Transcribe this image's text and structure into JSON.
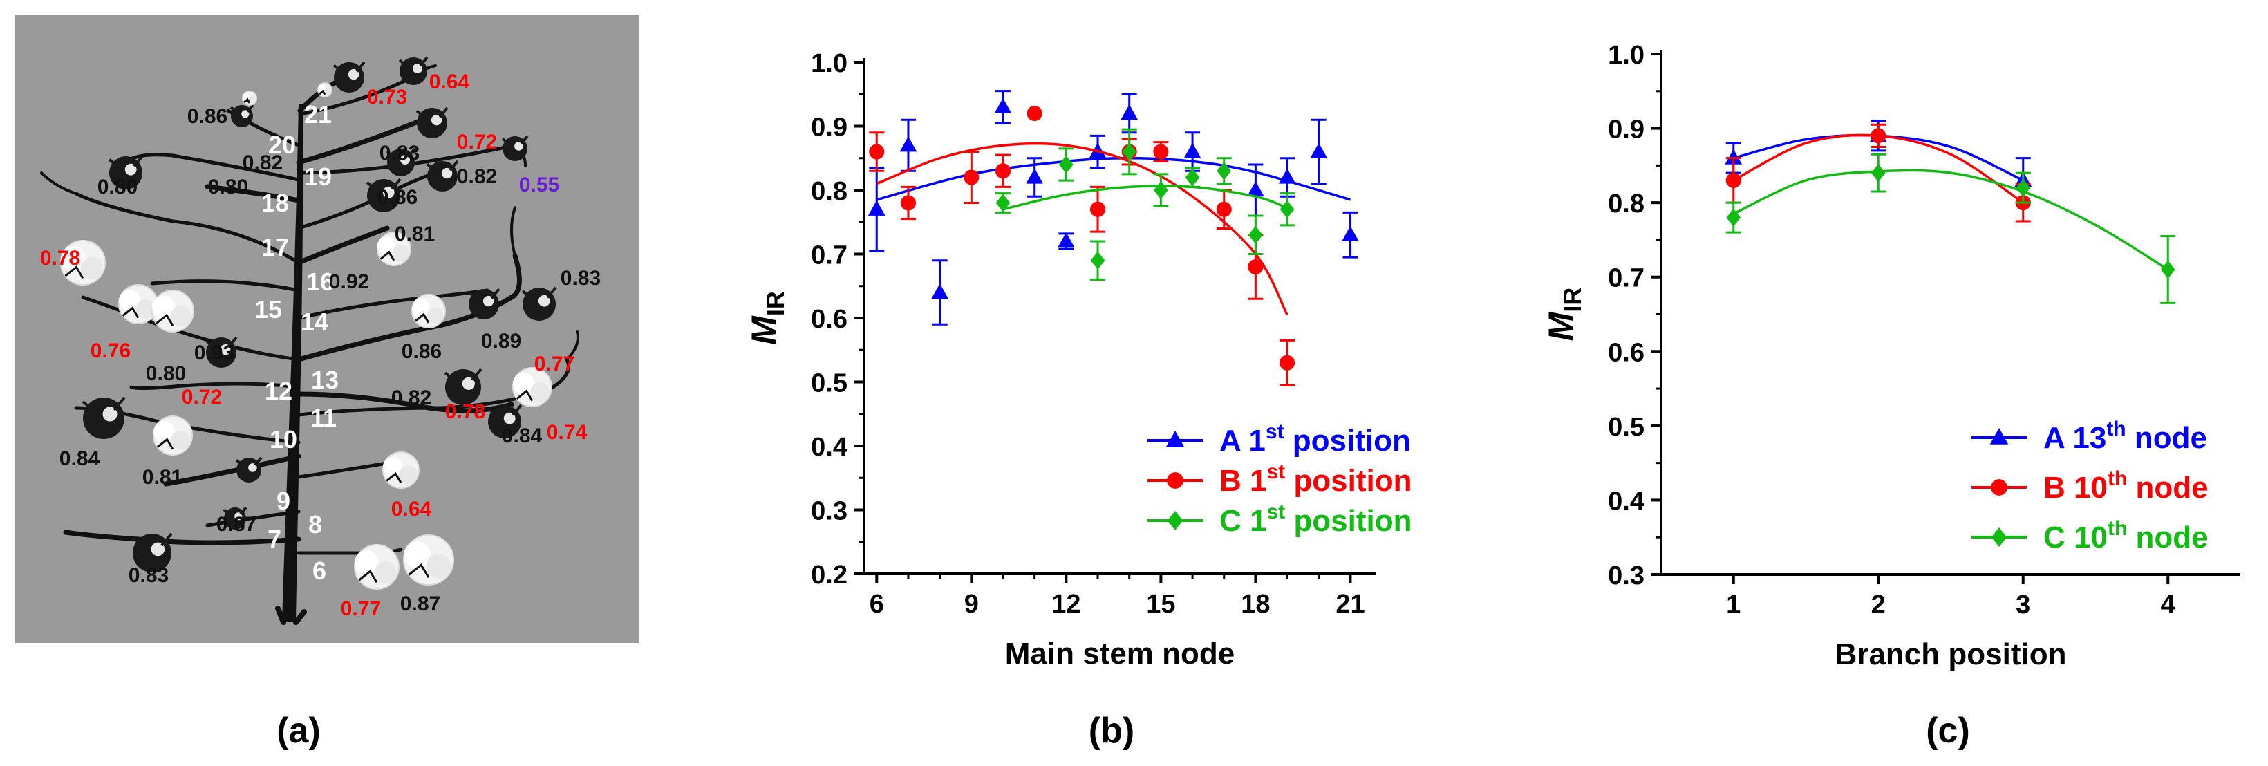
{
  "figure": {
    "panel_labels": [
      "(a)",
      "(b)",
      "(c)"
    ]
  },
  "panel_a": {
    "background": "#9a9a9a",
    "node_numbers": [
      "21",
      "20",
      "19",
      "18",
      "17",
      "16",
      "15",
      "14",
      "13",
      "12",
      "11",
      "10",
      "9",
      "8",
      "7",
      "6"
    ],
    "black_values": [
      "0.86",
      "0.82",
      "0.83",
      "0.80",
      "0.86",
      "0.82",
      "0.80",
      "0.81",
      "0.92",
      "0.86",
      "0.89",
      "0.83",
      "0.80",
      "0.93",
      "0.82",
      "0.84",
      "0.84",
      "0.81",
      "0.87",
      "0.83",
      "0.87"
    ],
    "red_values": [
      "0.73",
      "0.64",
      "0.72",
      "0.78",
      "0.76",
      "0.72",
      "0.77",
      "0.78",
      "0.74",
      "0.64",
      "0.77"
    ],
    "purple_values": [
      "0.55"
    ],
    "colors": {
      "black_value": "#111111",
      "red_value": "#ff0000",
      "purple_value": "#6a1fd1",
      "node_number": "#ffffff"
    }
  },
  "chart_data": [
    {
      "type": "scatter",
      "panel": "b",
      "xlabel": "Main stem node",
      "ylabel": "M",
      "ylabel_sub": "IR",
      "xlim": [
        5.6,
        21.8
      ],
      "ylim": [
        0.2,
        1.0
      ],
      "xticks": [
        6,
        9,
        12,
        15,
        18,
        21
      ],
      "yticks": [
        0.2,
        0.3,
        0.4,
        0.5,
        0.6,
        0.7,
        0.8,
        0.9,
        1.0
      ],
      "legend_position": "bottom-right",
      "series": [
        {
          "name": "A 1st position",
          "label_main": "A 1",
          "label_sup": "st",
          "label_end": " position",
          "color": "#0000ff",
          "marker": "triangle",
          "points": [
            [
              6,
              0.77,
              0.065
            ],
            [
              7,
              0.87,
              0.04
            ],
            [
              8,
              0.64,
              0.05
            ],
            [
              10,
              0.93,
              0.025
            ],
            [
              11,
              0.82,
              0.03
            ],
            [
              12,
              0.72,
              0.012
            ],
            [
              13,
              0.86,
              0.025
            ],
            [
              14,
              0.92,
              0.03
            ],
            [
              16,
              0.86,
              0.03
            ],
            [
              18,
              0.8,
              0.04
            ],
            [
              19,
              0.82,
              0.03
            ],
            [
              20,
              0.86,
              0.05
            ],
            [
              21,
              0.73,
              0.035
            ]
          ],
          "fit": [
            [
              6,
              0.785
            ],
            [
              9,
              0.825
            ],
            [
              12,
              0.845
            ],
            [
              14,
              0.85
            ],
            [
              16,
              0.845
            ],
            [
              18,
              0.828
            ],
            [
              21,
              0.785
            ]
          ]
        },
        {
          "name": "B 1st position",
          "label_main": "B 1",
          "label_sup": "st",
          "label_end": " position",
          "color": "#ff0000",
          "marker": "circle",
          "points": [
            [
              6,
              0.86,
              0.03
            ],
            [
              7,
              0.78,
              0.025
            ],
            [
              9,
              0.82,
              0.04
            ],
            [
              10,
              0.83,
              0.025
            ],
            [
              11,
              0.92,
              0
            ],
            [
              13,
              0.77,
              0.035
            ],
            [
              14,
              0.86,
              0.02
            ],
            [
              15,
              0.86,
              0.015
            ],
            [
              17,
              0.77,
              0.03
            ],
            [
              18,
              0.68,
              0.05
            ],
            [
              19,
              0.53,
              0.035
            ]
          ],
          "fit": [
            [
              6,
              0.81
            ],
            [
              8,
              0.85
            ],
            [
              10,
              0.87
            ],
            [
              12,
              0.87
            ],
            [
              14,
              0.845
            ],
            [
              16,
              0.79
            ],
            [
              18,
              0.7
            ],
            [
              19,
              0.605
            ]
          ]
        },
        {
          "name": "C 1st position",
          "label_main": "C 1",
          "label_sup": "st",
          "label_end": " position",
          "color": "#11bb11",
          "marker": "diamond",
          "points": [
            [
              10,
              0.78,
              0.015
            ],
            [
              12,
              0.84,
              0.025
            ],
            [
              13,
              0.69,
              0.03
            ],
            [
              14,
              0.86,
              0.035
            ],
            [
              15,
              0.8,
              0.025
            ],
            [
              16,
              0.82,
              0.015
            ],
            [
              17,
              0.83,
              0.02
            ],
            [
              18,
              0.73,
              0.03
            ],
            [
              19,
              0.77,
              0.025
            ]
          ],
          "fit": [
            [
              10,
              0.77
            ],
            [
              12,
              0.793
            ],
            [
              14,
              0.805
            ],
            [
              16,
              0.805
            ],
            [
              18,
              0.79
            ],
            [
              19,
              0.772
            ]
          ]
        }
      ]
    },
    {
      "type": "line",
      "panel": "c",
      "xlabel": "Branch position",
      "ylabel": "M",
      "ylabel_sub": "IR",
      "xlim": [
        0.5,
        4.5
      ],
      "ylim": [
        0.3,
        1.0
      ],
      "xticks": [
        1,
        2,
        3,
        4
      ],
      "yticks": [
        0.3,
        0.4,
        0.5,
        0.6,
        0.7,
        0.8,
        0.9,
        1.0
      ],
      "legend_position": "bottom-right",
      "series": [
        {
          "name": "A 13th node",
          "label_main": "A 13",
          "label_sup": "th",
          "label_end": " node",
          "color": "#0000ff",
          "marker": "triangle",
          "points": [
            [
              1,
              0.86,
              0.02
            ],
            [
              2,
              0.89,
              0.02
            ],
            [
              3,
              0.83,
              0.03
            ]
          ],
          "fit": [
            [
              1,
              0.86
            ],
            [
              1.5,
              0.885
            ],
            [
              2,
              0.89
            ],
            [
              2.5,
              0.875
            ],
            [
              3,
              0.83
            ]
          ]
        },
        {
          "name": "B 10th node",
          "label_main": "B 10",
          "label_sup": "th",
          "label_end": " node",
          "color": "#ff0000",
          "marker": "circle",
          "points": [
            [
              1,
              0.83,
              0.03
            ],
            [
              2,
              0.89,
              0.015
            ],
            [
              3,
              0.8,
              0.025
            ]
          ],
          "fit": [
            [
              1,
              0.83
            ],
            [
              1.5,
              0.88
            ],
            [
              2,
              0.89
            ],
            [
              2.5,
              0.865
            ],
            [
              3,
              0.8
            ]
          ]
        },
        {
          "name": "C 10th node",
          "label_main": "C 10",
          "label_sup": "th",
          "label_end": " node",
          "color": "#11bb11",
          "marker": "diamond",
          "points": [
            [
              1,
              0.78,
              0.02
            ],
            [
              2,
              0.84,
              0.025
            ],
            [
              3,
              0.82,
              0.02
            ],
            [
              4,
              0.71,
              0.045
            ]
          ],
          "fit": [
            [
              1,
              0.785
            ],
            [
              1.5,
              0.83
            ],
            [
              2,
              0.842
            ],
            [
              2.5,
              0.84
            ],
            [
              3,
              0.815
            ],
            [
              3.5,
              0.77
            ],
            [
              4,
              0.71
            ]
          ]
        }
      ]
    }
  ]
}
